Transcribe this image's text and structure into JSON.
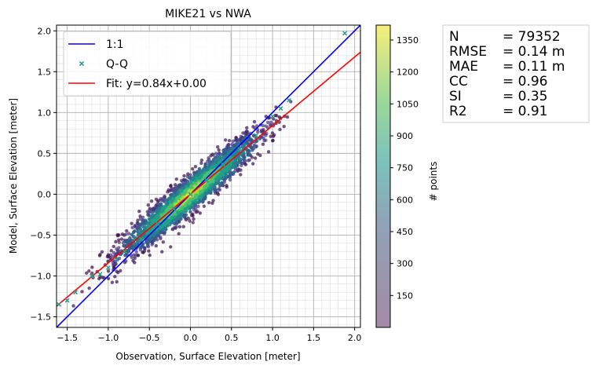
{
  "chart_data": {
    "type": "scatter",
    "title": "MIKE21 vs NWA",
    "xlabel": "Observation, Surface Elevation [meter]",
    "ylabel": "Model, Surface Elevation [meter]",
    "xlim": [
      -1.63,
      2.07
    ],
    "ylim": [
      -1.63,
      2.07
    ],
    "x_ticks": [
      -1.5,
      -1.0,
      -0.5,
      0.0,
      0.5,
      1.0,
      1.5,
      2.0
    ],
    "x_tick_labels": [
      "−1.5",
      "−1.0",
      "−0.5",
      "0.0",
      "0.5",
      "1.0",
      "1.5",
      "2.0"
    ],
    "y_ticks": [
      -1.5,
      -1.0,
      -0.5,
      0.0,
      0.5,
      1.0,
      1.5,
      2.0
    ],
    "y_tick_labels": [
      "−1.5",
      "−1.0",
      "−0.5",
      "0.0",
      "0.5",
      "1.0",
      "1.5",
      "2.0"
    ],
    "grid": true,
    "legend_position": "top-left",
    "series": [
      {
        "name": "1:1",
        "kind": "line",
        "color": "#0000ff",
        "slope": 1.0,
        "intercept": 0.0
      },
      {
        "name": "Q-Q",
        "kind": "markers",
        "color": "#2a9d8f",
        "x": [
          -1.6,
          -1.5,
          -1.4,
          -1.2,
          -1.1,
          -1.0,
          -0.9,
          -0.8,
          -0.6,
          -0.4,
          -0.2,
          0.0,
          0.2,
          0.4,
          0.6,
          0.8,
          1.0,
          1.1,
          1.2,
          1.88
        ],
        "y": [
          -1.35,
          -1.3,
          -1.2,
          -1.0,
          -0.98,
          -0.9,
          -0.8,
          -0.7,
          -0.55,
          -0.36,
          -0.18,
          0.0,
          0.17,
          0.36,
          0.55,
          0.72,
          0.95,
          1.05,
          1.15,
          1.97
        ]
      },
      {
        "name": "Fit: y=0.84x+0.00",
        "kind": "line",
        "color": "#ff0000",
        "slope": 0.84,
        "intercept": 0.0
      }
    ],
    "density": {
      "color_label": "# points",
      "colorbar_ticks": [
        150,
        300,
        450,
        600,
        750,
        900,
        1050,
        1200,
        1350
      ],
      "colorbar_range": [
        0,
        1420
      ],
      "colormap": [
        "#3b0f4f",
        "#46337e",
        "#365c8d",
        "#277f8e",
        "#1fa187",
        "#4ac16d",
        "#a0da39",
        "#fde725"
      ],
      "point_count": 79352
    },
    "stats": [
      {
        "label": "N",
        "value": "= 79352"
      },
      {
        "label": "RMSE",
        "value": "= 0.14 m"
      },
      {
        "label": "MAE",
        "value": "= 0.11 m"
      },
      {
        "label": "CC",
        "value": "= 0.96"
      },
      {
        "label": "SI",
        "value": "= 0.35"
      },
      {
        "label": "R2",
        "value": "= 0.91"
      }
    ]
  }
}
